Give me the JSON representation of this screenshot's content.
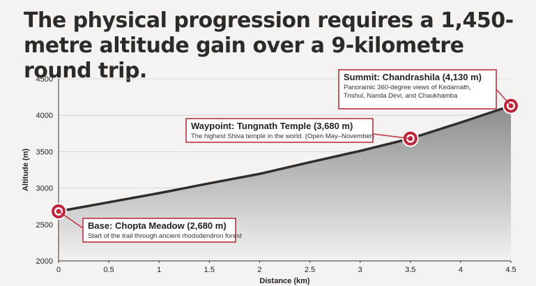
{
  "headline": "The physical progression requires a 1,450-metre altitude gain over a 9-kilometre round trip.",
  "chart_data": {
    "type": "area",
    "title": "The physical progression requires a 1,450-metre altitude gain over a 9-kilometre round trip.",
    "xlabel": "Distance (km)",
    "ylabel": "Altitude (m)",
    "xlim": [
      0,
      4.5
    ],
    "ylim": [
      2000,
      4500
    ],
    "x_ticks": [
      "0",
      "0.5",
      "1",
      "1.5",
      "2",
      "2.5",
      "3",
      "3.5",
      "4",
      "4.5"
    ],
    "y_ticks": [
      "2000",
      "2500",
      "3000",
      "3500",
      "4000",
      "4500"
    ],
    "grid": "horizontal",
    "series": [
      {
        "x": [
          0,
          0.5,
          1,
          1.5,
          2,
          2.5,
          3,
          3.5,
          4,
          4.5
        ],
        "y": [
          2680,
          2805,
          2930,
          3065,
          3195,
          3355,
          3510,
          3680,
          3900,
          4130
        ]
      }
    ],
    "annotations": [
      {
        "x": 0,
        "y": 2680,
        "title": "Base: Chopta Meadow (2,680 m)",
        "lines": [
          "Start of the trail through ancient rhododendron forest"
        ]
      },
      {
        "x": 3.5,
        "y": 3680,
        "title": "Waypoint: Tungnath Temple (3,680 m)",
        "lines": [
          "The highest Shiva temple in the world. (Open May–November)"
        ]
      },
      {
        "x": 4.5,
        "y": 4130,
        "title": "Summit: Chandrashila (4,130 m)",
        "lines": [
          "Panoramic 360-degree views of Kedarnath,",
          "Trishul, Nanda Devi, and Chaukhamba"
        ]
      }
    ],
    "colors": {
      "line": "#2e2e2e",
      "area_top": "#8c8c8c",
      "area_bottom": "#f1f1f1",
      "marker": "#c0243a",
      "box_border": "#b8313f",
      "grid": "#cfcfcf"
    }
  }
}
